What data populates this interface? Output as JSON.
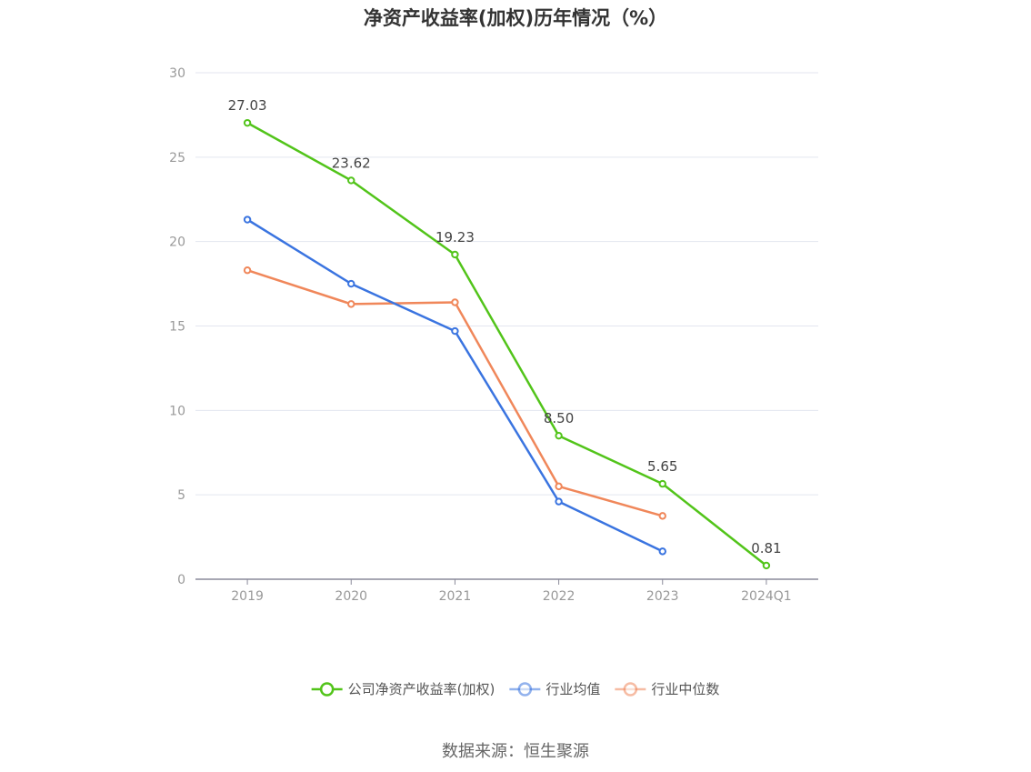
{
  "chart_data": {
    "type": "line",
    "title": "净资产收益率(加权)历年情况（%）",
    "categories": [
      "2019",
      "2020",
      "2021",
      "2022",
      "2023",
      "2024Q1"
    ],
    "ylim": [
      0,
      30
    ],
    "yticks": [
      0,
      5,
      10,
      15,
      20,
      25,
      30
    ],
    "grid": true,
    "legend_position": "bottom",
    "series": [
      {
        "name": "公司净资产收益率(加权)",
        "color": "#52c41a",
        "values": [
          27.03,
          23.62,
          19.23,
          8.5,
          5.65,
          0.81
        ],
        "labels": [
          "27.03",
          "23.62",
          "19.23",
          "8.50",
          "5.65",
          "0.81"
        ]
      },
      {
        "name": "行业均值",
        "color": "#3a74e0",
        "values": [
          21.3,
          17.5,
          14.7,
          4.6,
          1.65,
          null
        ]
      },
      {
        "name": "行业中位数",
        "color": "#f0875a",
        "values": [
          18.3,
          16.3,
          16.4,
          5.5,
          3.75,
          null
        ]
      }
    ],
    "source": "数据来源：恒生聚源"
  }
}
